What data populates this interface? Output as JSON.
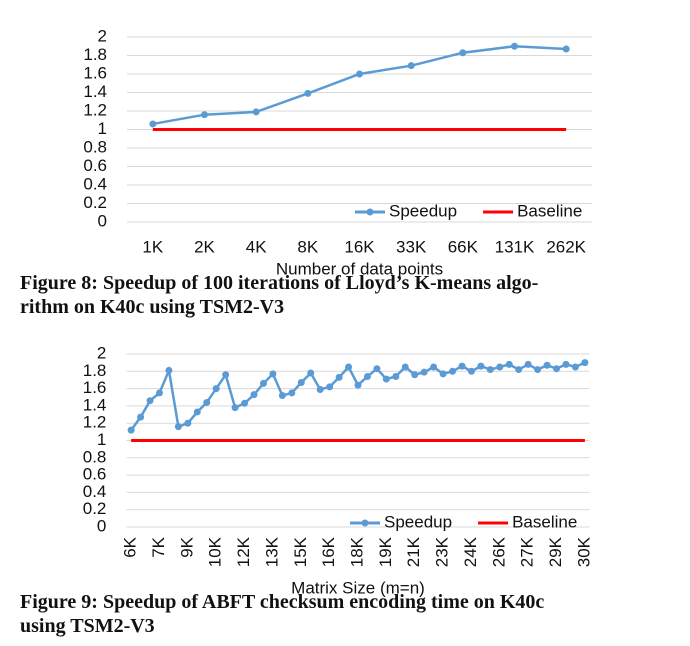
{
  "chart_data": [
    {
      "type": "line",
      "categories": [
        "1K",
        "2K",
        "4K",
        "8K",
        "16K",
        "33K",
        "66K",
        "131K",
        "262K"
      ],
      "x_label": "Number of data points",
      "series": [
        {
          "name": "Speedup",
          "color": "#5b9bd5",
          "marker": true,
          "values": [
            1.06,
            1.16,
            1.19,
            1.39,
            1.6,
            1.69,
            1.83,
            1.9,
            1.87
          ]
        },
        {
          "name": "Baseline",
          "color": "#ff0000",
          "marker": false,
          "values": [
            1,
            1,
            1,
            1,
            1,
            1,
            1,
            1,
            1
          ]
        }
      ],
      "ylim": [
        0,
        2
      ],
      "yticks": [
        0,
        0.2,
        0.4,
        0.6,
        0.8,
        1,
        1.2,
        1.4,
        1.6,
        1.8,
        2
      ],
      "grid": true,
      "legend": "bottom-right",
      "caption": [
        "Figure 8: Speedup of 100 iterations of Lloyd’s K-means algo-",
        "rithm on K40c using TSM2-V3"
      ]
    },
    {
      "type": "line",
      "categories": [
        "6K",
        null,
        null,
        "7K",
        null,
        null,
        "9K",
        null,
        null,
        "10K",
        null,
        null,
        "12K",
        null,
        null,
        "13K",
        null,
        null,
        "15K",
        null,
        null,
        "16K",
        null,
        null,
        "18K",
        null,
        null,
        "19K",
        null,
        null,
        "21K",
        null,
        null,
        "23K",
        null,
        null,
        "24K",
        null,
        null,
        "26K",
        null,
        null,
        "27K",
        null,
        null,
        "29K",
        null,
        null,
        "30K"
      ],
      "x_label": "Matrix Size (m=n)",
      "series": [
        {
          "name": "Speedup",
          "color": "#5b9bd5",
          "marker": true,
          "values": [
            1.12,
            1.27,
            1.46,
            1.55,
            1.81,
            1.16,
            1.2,
            1.33,
            1.44,
            1.6,
            1.76,
            1.38,
            1.43,
            1.53,
            1.66,
            1.77,
            1.52,
            1.55,
            1.67,
            1.78,
            1.59,
            1.62,
            1.73,
            1.85,
            1.64,
            1.74,
            1.83,
            1.71,
            1.74,
            1.85,
            1.76,
            1.79,
            1.85,
            1.77,
            1.8,
            1.86,
            1.8,
            1.86,
            1.82,
            1.85,
            1.88,
            1.82,
            1.88,
            1.82,
            1.87,
            1.83,
            1.88,
            1.85,
            1.9
          ]
        },
        {
          "name": "Baseline",
          "color": "#ff0000",
          "marker": false,
          "values": [
            1,
            1,
            1,
            1,
            1,
            1,
            1,
            1,
            1,
            1,
            1,
            1,
            1,
            1,
            1,
            1,
            1,
            1,
            1,
            1,
            1,
            1,
            1,
            1,
            1,
            1,
            1,
            1,
            1,
            1,
            1,
            1,
            1,
            1,
            1,
            1,
            1,
            1,
            1,
            1,
            1,
            1,
            1,
            1,
            1,
            1,
            1,
            1,
            1
          ]
        }
      ],
      "ylim": [
        0,
        2
      ],
      "yticks": [
        0,
        0.2,
        0.4,
        0.6,
        0.8,
        1,
        1.2,
        1.4,
        1.6,
        1.8,
        2
      ],
      "grid": true,
      "legend": "bottom-right",
      "caption": [
        "Figure 9: Speedup of ABFT checksum encoding time on K40c",
        "using TSM2-V3"
      ]
    }
  ]
}
